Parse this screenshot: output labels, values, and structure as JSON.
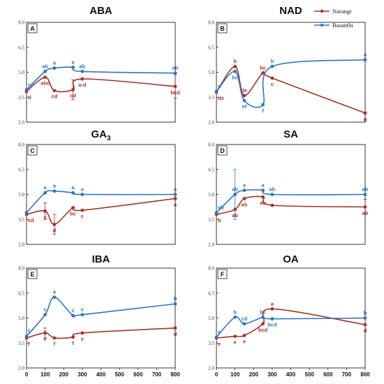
{
  "legend": {
    "items": [
      {
        "name": "Narangi",
        "color": "#a93226"
      },
      {
        "name": "Basanthi",
        "color": "#2e75c7"
      }
    ],
    "placement": "top-right"
  },
  "chart_data": [
    {
      "type": "line",
      "letter": "A",
      "title": "ABA",
      "title_sub": "",
      "ylim": [
        2.0,
        8.0
      ],
      "yticks": [
        "2.0",
        "3.5",
        "5.0",
        "6.5",
        "8.0"
      ],
      "xticks": [],
      "xscale": "linear",
      "grid": false,
      "series": [
        {
          "name": "Narangi",
          "points": [
            [
              0,
              3.85
            ],
            [
              100,
              4.7
            ],
            [
              150,
              3.9
            ],
            [
              250,
              3.95
            ],
            [
              300,
              4.6
            ],
            [
              800,
              4.15
            ]
          ],
          "errors": [
            0,
            0,
            0,
            0.6,
            0,
            0.7
          ],
          "labels": [
            "d",
            "abc",
            "cd",
            "cd",
            "a-d",
            "bcd"
          ]
        },
        {
          "name": "Basanthi",
          "points": [
            [
              0,
              3.95
            ],
            [
              100,
              5.05
            ],
            [
              150,
              5.25
            ],
            [
              250,
              5.3
            ],
            [
              300,
              5.05
            ],
            [
              800,
              4.95
            ]
          ],
          "errors": [
            0,
            0,
            0,
            0,
            0,
            0
          ],
          "labels": [
            "cd",
            "ab",
            "a",
            "a",
            "ab",
            "ab"
          ]
        }
      ]
    },
    {
      "type": "line",
      "letter": "B",
      "title": "NAD",
      "title_sub": "",
      "ylim": [
        2.0,
        8.0
      ],
      "yticks": [
        "2.0",
        "3.5",
        "5.0",
        "6.5",
        "8.0"
      ],
      "xticks": [],
      "xscale": "linear",
      "grid": false,
      "series": [
        {
          "name": "Narangi",
          "points": [
            [
              0,
              3.8
            ],
            [
              100,
              5.35
            ],
            [
              150,
              3.6
            ],
            [
              250,
              4.95
            ],
            [
              300,
              4.65
            ],
            [
              800,
              2.55
            ]
          ],
          "errors": [
            0,
            0,
            0,
            0,
            0,
            0
          ],
          "labels": [
            "de",
            "b",
            "de",
            "bc",
            "c",
            "g"
          ]
        },
        {
          "name": "Basanthi",
          "points": [
            [
              0,
              3.85
            ],
            [
              100,
              5.05
            ],
            [
              150,
              3.3
            ],
            [
              250,
              3.05
            ],
            [
              300,
              5.35
            ],
            [
              800,
              5.75
            ]
          ],
          "errors": [
            0,
            0,
            0,
            0,
            0,
            0
          ],
          "labels": [
            "d",
            "bc",
            "ef",
            "f",
            "b",
            "a"
          ]
        }
      ]
    },
    {
      "type": "line",
      "letter": "C",
      "title": "GA",
      "title_sub": "3",
      "ylim": [
        2.0,
        8.0
      ],
      "yticks": [
        "2.0",
        "3.5",
        "5.0",
        "6.5",
        "8.0"
      ],
      "xticks": [],
      "xscale": "linear",
      "grid": false,
      "series": [
        {
          "name": "Narangi",
          "points": [
            [
              0,
              3.8
            ],
            [
              100,
              4.0
            ],
            [
              150,
              3.2
            ],
            [
              250,
              4.2
            ],
            [
              300,
              4.05
            ],
            [
              800,
              4.75
            ]
          ],
          "errors": [
            0,
            0.5,
            0.6,
            0,
            0,
            0
          ],
          "labels": [
            "cd",
            "c",
            "d",
            "bc",
            "c",
            "a"
          ]
        },
        {
          "name": "Basanthi",
          "points": [
            [
              0,
              3.9
            ],
            [
              100,
              5.1
            ],
            [
              150,
              5.2
            ],
            [
              250,
              5.1
            ],
            [
              300,
              5.0
            ],
            [
              800,
              5.0
            ]
          ],
          "errors": [
            0,
            0,
            0,
            0,
            0,
            0
          ],
          "labels": [
            "",
            "a",
            "a",
            "a",
            "a",
            "a"
          ]
        }
      ]
    },
    {
      "type": "line",
      "letter": "D",
      "title": "SA",
      "title_sub": "",
      "ylim": [
        2.0,
        8.0
      ],
      "yticks": [
        "2.0",
        "3.5",
        "5.0",
        "6.5",
        "8.0"
      ],
      "xticks": [],
      "xscale": "linear",
      "grid": false,
      "series": [
        {
          "name": "Narangi",
          "points": [
            [
              0,
              3.8
            ],
            [
              100,
              4.1
            ],
            [
              150,
              4.75
            ],
            [
              250,
              4.85
            ],
            [
              300,
              4.35
            ],
            [
              800,
              4.25
            ]
          ],
          "errors": [
            0,
            0,
            0,
            0,
            0,
            0.45
          ],
          "labels": [
            "b",
            "ab",
            "ab",
            "ab",
            "",
            "ab"
          ]
        },
        {
          "name": "Basanthi",
          "points": [
            [
              0,
              3.9
            ],
            [
              100,
              5.0
            ],
            [
              150,
              5.25
            ],
            [
              250,
              5.25
            ],
            [
              300,
              5.0
            ],
            [
              800,
              5.0
            ]
          ],
          "errors": [
            0,
            1.5,
            0,
            0,
            0,
            0
          ],
          "labels": [
            "ab",
            "ab",
            "a",
            "a",
            "ab",
            "ab"
          ]
        }
      ]
    },
    {
      "type": "line",
      "letter": "E",
      "title": "IBA",
      "title_sub": "",
      "ylim": [
        2.0,
        8.0
      ],
      "yticks": [
        "2.0",
        "3.5",
        "5.0",
        "6.5",
        "8.0"
      ],
      "xticks": [
        "0",
        "100",
        "200",
        "300",
        "400",
        "500",
        "600",
        "700",
        "800"
      ],
      "xscale": "linear",
      "grid": false,
      "series": [
        {
          "name": "Narangi",
          "points": [
            [
              0,
              3.8
            ],
            [
              100,
              4.1
            ],
            [
              150,
              3.8
            ],
            [
              250,
              3.85
            ],
            [
              300,
              4.1
            ],
            [
              800,
              4.4
            ]
          ],
          "errors": [
            0,
            0.3,
            0,
            0,
            0,
            0
          ],
          "labels": [
            "f",
            "e",
            "f",
            "f",
            "e",
            "d"
          ]
        },
        {
          "name": "Basanthi",
          "points": [
            [
              0,
              3.9
            ],
            [
              100,
              5.2
            ],
            [
              150,
              6.25
            ],
            [
              250,
              5.15
            ],
            [
              300,
              5.2
            ],
            [
              800,
              5.85
            ]
          ],
          "errors": [
            0,
            0,
            0,
            0,
            0,
            0
          ],
          "labels": [
            "f",
            "c",
            "a",
            "c",
            "c",
            "b"
          ]
        }
      ]
    },
    {
      "type": "line",
      "letter": "F",
      "title": "OA",
      "title_sub": "",
      "ylim": [
        2.0,
        8.0
      ],
      "yticks": [
        "2.0",
        "3.5",
        "5.0",
        "6.5",
        "8.0"
      ],
      "xticks": [
        "0",
        "100",
        "200",
        "300",
        "400",
        "500",
        "600",
        "700",
        "800"
      ],
      "xscale": "linear",
      "grid": false,
      "series": [
        {
          "name": "Narangi",
          "points": [
            [
              0,
              3.8
            ],
            [
              100,
              3.9
            ],
            [
              150,
              3.95
            ],
            [
              250,
              4.65
            ],
            [
              300,
              5.55
            ],
            [
              800,
              4.6
            ]
          ],
          "errors": [
            0,
            0,
            0,
            0,
            0,
            0
          ],
          "labels": [
            "e",
            "e",
            "e",
            "bcd",
            "a",
            "d"
          ]
        },
        {
          "name": "Basanthi",
          "points": [
            [
              0,
              3.85
            ],
            [
              100,
              5.05
            ],
            [
              150,
              4.65
            ],
            [
              250,
              5.05
            ],
            [
              300,
              4.95
            ],
            [
              800,
              5.0
            ]
          ],
          "errors": [
            0,
            0,
            0,
            0,
            0,
            0
          ],
          "labels": [
            "e",
            "b",
            "cd",
            "bc",
            "bcd",
            "b"
          ]
        }
      ]
    }
  ]
}
